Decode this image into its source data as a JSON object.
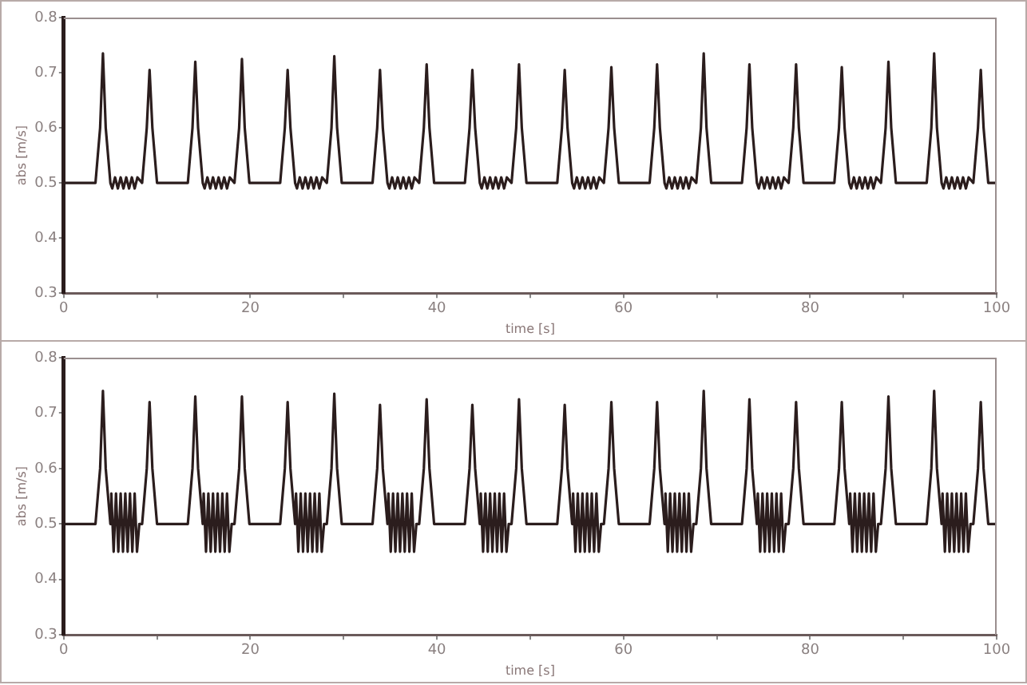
{
  "chart_data": [
    {
      "type": "line",
      "xlabel": "time [s]",
      "ylabel": "abs [m/s]",
      "color": "#2b1d1d",
      "grid": false,
      "xlim": [
        0,
        100
      ],
      "ylim": [
        0.3,
        0.8
      ],
      "xticks": [
        0,
        {
          "value": 10,
          "label": null
        },
        20,
        {
          "value": 30,
          "label": null
        },
        40,
        {
          "value": 50,
          "label": null
        },
        60,
        {
          "value": 70,
          "label": null
        },
        80,
        {
          "value": 90,
          "label": null
        },
        100
      ],
      "yticks": [
        0.3,
        0.4,
        0.5,
        0.6,
        0.7,
        0.8
      ],
      "x": [
        0,
        0,
        3.4,
        3.9,
        4.2,
        4.5,
        5.0,
        5.2,
        5.5,
        5.8,
        6.1,
        6.4,
        6.7,
        7.0,
        7.3,
        7.6,
        7.9,
        8.4,
        8.9,
        9.2,
        9.5,
        10.0,
        13.3,
        13.8,
        14.1,
        14.4,
        14.9,
        15.1,
        15.4,
        15.7,
        16.0,
        16.3,
        16.6,
        16.9,
        17.2,
        17.5,
        17.8,
        18.3,
        18.8,
        19.1,
        19.4,
        19.9,
        23.2,
        23.7,
        24.0,
        24.3,
        24.8,
        25.0,
        25.3,
        25.6,
        25.9,
        26.2,
        26.5,
        26.8,
        27.1,
        27.4,
        27.7,
        28.2,
        28.7,
        29.0,
        29.3,
        29.8,
        33.1,
        33.6,
        33.9,
        34.2,
        34.7,
        34.9,
        35.2,
        35.5,
        35.8,
        36.1,
        36.4,
        36.7,
        37.0,
        37.3,
        37.6,
        38.1,
        38.6,
        38.9,
        39.2,
        39.7,
        43.0,
        43.5,
        43.8,
        44.1,
        44.6,
        44.8,
        45.1,
        45.4,
        45.7,
        46.0,
        46.3,
        46.6,
        46.9,
        47.2,
        47.5,
        48.0,
        48.5,
        48.8,
        49.1,
        49.6,
        52.9,
        53.4,
        53.7,
        54.0,
        54.5,
        54.7,
        55.0,
        55.3,
        55.6,
        55.9,
        56.2,
        56.5,
        56.8,
        57.1,
        57.4,
        57.9,
        58.4,
        58.7,
        59.0,
        59.5,
        62.8,
        63.3,
        63.6,
        63.9,
        64.4,
        64.6,
        64.9,
        65.2,
        65.5,
        65.8,
        66.1,
        66.4,
        66.7,
        67.0,
        67.3,
        67.8,
        68.3,
        68.6,
        68.9,
        69.4,
        72.7,
        73.2,
        73.5,
        73.8,
        74.3,
        74.5,
        74.8,
        75.1,
        75.4,
        75.7,
        76.0,
        76.3,
        76.6,
        76.9,
        77.2,
        77.7,
        78.2,
        78.5,
        78.8,
        79.3,
        82.6,
        83.1,
        83.4,
        83.7,
        84.2,
        84.4,
        84.7,
        85.0,
        85.3,
        85.6,
        85.9,
        86.2,
        86.5,
        86.8,
        87.1,
        87.6,
        88.1,
        88.4,
        88.7,
        89.2,
        92.5,
        93.0,
        93.3,
        93.6,
        94.1,
        94.3,
        94.6,
        94.9,
        95.2,
        95.5,
        95.8,
        96.1,
        96.4,
        96.7,
        97.0,
        97.5,
        98.0,
        98.3,
        98.6,
        99.1,
        100
      ],
      "values": [
        0.3,
        0.5,
        0.5,
        0.6,
        0.735,
        0.6,
        0.5,
        0.49,
        0.51,
        0.49,
        0.51,
        0.49,
        0.51,
        0.49,
        0.51,
        0.49,
        0.51,
        0.5,
        0.6,
        0.705,
        0.6,
        0.5,
        0.5,
        0.6,
        0.72,
        0.6,
        0.5,
        0.49,
        0.51,
        0.49,
        0.51,
        0.49,
        0.51,
        0.49,
        0.51,
        0.49,
        0.51,
        0.5,
        0.6,
        0.725,
        0.6,
        0.5,
        0.5,
        0.6,
        0.705,
        0.6,
        0.5,
        0.49,
        0.51,
        0.49,
        0.51,
        0.49,
        0.51,
        0.49,
        0.51,
        0.49,
        0.51,
        0.5,
        0.6,
        0.73,
        0.6,
        0.5,
        0.5,
        0.6,
        0.705,
        0.6,
        0.5,
        0.49,
        0.51,
        0.49,
        0.51,
        0.49,
        0.51,
        0.49,
        0.51,
        0.49,
        0.51,
        0.5,
        0.6,
        0.715,
        0.6,
        0.5,
        0.5,
        0.6,
        0.705,
        0.6,
        0.5,
        0.49,
        0.51,
        0.49,
        0.51,
        0.49,
        0.51,
        0.49,
        0.51,
        0.49,
        0.51,
        0.5,
        0.6,
        0.715,
        0.6,
        0.5,
        0.5,
        0.6,
        0.705,
        0.6,
        0.5,
        0.49,
        0.51,
        0.49,
        0.51,
        0.49,
        0.51,
        0.49,
        0.51,
        0.49,
        0.51,
        0.5,
        0.6,
        0.71,
        0.6,
        0.5,
        0.5,
        0.6,
        0.715,
        0.6,
        0.5,
        0.49,
        0.51,
        0.49,
        0.51,
        0.49,
        0.51,
        0.49,
        0.51,
        0.49,
        0.51,
        0.5,
        0.6,
        0.735,
        0.6,
        0.5,
        0.5,
        0.6,
        0.715,
        0.6,
        0.5,
        0.49,
        0.51,
        0.49,
        0.51,
        0.49,
        0.51,
        0.49,
        0.51,
        0.49,
        0.51,
        0.5,
        0.6,
        0.715,
        0.6,
        0.5,
        0.5,
        0.6,
        0.71,
        0.6,
        0.5,
        0.49,
        0.51,
        0.49,
        0.51,
        0.49,
        0.51,
        0.49,
        0.51,
        0.49,
        0.51,
        0.5,
        0.6,
        0.72,
        0.6,
        0.5,
        0.5,
        0.6,
        0.735,
        0.6,
        0.5,
        0.49,
        0.51,
        0.49,
        0.51,
        0.49,
        0.51,
        0.49,
        0.51,
        0.49,
        0.51,
        0.5,
        0.6,
        0.705,
        0.6,
        0.5,
        0.5
      ]
    },
    {
      "type": "line",
      "xlabel": "time [s]",
      "ylabel": "abs [m/s]",
      "color": "#2b1d1d",
      "grid": false,
      "xlim": [
        0,
        100
      ],
      "ylim": [
        0.3,
        0.8
      ],
      "xticks": [
        0,
        {
          "value": 10,
          "label": null
        },
        20,
        {
          "value": 30,
          "label": null
        },
        40,
        {
          "value": 50,
          "label": null
        },
        60,
        {
          "value": 70,
          "label": null
        },
        80,
        {
          "value": 90,
          "label": null
        },
        100
      ],
      "yticks": [
        0.3,
        0.4,
        0.5,
        0.6,
        0.7,
        0.8
      ],
      "x": [
        0,
        0,
        3.4,
        3.9,
        4.2,
        4.5,
        5.0,
        5.1,
        5.35,
        5.6,
        5.85,
        6.1,
        6.35,
        6.6,
        6.85,
        7.1,
        7.35,
        7.6,
        7.85,
        8.1,
        8.4,
        8.9,
        9.2,
        9.5,
        10.0,
        13.3,
        13.8,
        14.1,
        14.4,
        14.9,
        15.0,
        15.25,
        15.5,
        15.75,
        16.0,
        16.25,
        16.5,
        16.75,
        17.0,
        17.25,
        17.5,
        17.75,
        18.0,
        18.3,
        18.8,
        19.1,
        19.4,
        19.9,
        23.2,
        23.7,
        24.0,
        24.3,
        24.8,
        24.9,
        25.15,
        25.4,
        25.65,
        25.9,
        26.15,
        26.4,
        26.65,
        26.9,
        27.15,
        27.4,
        27.65,
        27.9,
        28.2,
        28.7,
        29.0,
        29.3,
        29.8,
        33.1,
        33.6,
        33.9,
        34.2,
        34.7,
        34.8,
        35.05,
        35.3,
        35.55,
        35.8,
        36.05,
        36.3,
        36.55,
        36.8,
        37.05,
        37.3,
        37.55,
        37.8,
        38.1,
        38.6,
        38.9,
        39.2,
        39.7,
        43.0,
        43.5,
        43.8,
        44.1,
        44.6,
        44.7,
        44.95,
        45.2,
        45.45,
        45.7,
        45.95,
        46.2,
        46.45,
        46.7,
        46.95,
        47.2,
        47.45,
        47.7,
        48.0,
        48.5,
        48.8,
        49.1,
        49.6,
        52.9,
        53.4,
        53.7,
        54.0,
        54.5,
        54.6,
        54.85,
        55.1,
        55.35,
        55.6,
        55.85,
        56.1,
        56.35,
        56.6,
        56.85,
        57.1,
        57.35,
        57.6,
        57.9,
        58.4,
        58.7,
        59.0,
        59.5,
        62.8,
        63.3,
        63.6,
        63.9,
        64.4,
        64.5,
        64.75,
        65.0,
        65.25,
        65.5,
        65.75,
        66.0,
        66.25,
        66.5,
        66.75,
        67.0,
        67.25,
        67.5,
        67.8,
        68.3,
        68.6,
        68.9,
        69.4,
        72.7,
        73.2,
        73.5,
        73.8,
        74.3,
        74.4,
        74.65,
        74.9,
        75.15,
        75.4,
        75.65,
        75.9,
        76.15,
        76.4,
        76.65,
        76.9,
        77.15,
        77.4,
        77.7,
        78.2,
        78.5,
        78.8,
        79.3,
        82.6,
        83.1,
        83.4,
        83.7,
        84.2,
        84.3,
        84.55,
        84.8,
        85.05,
        85.3,
        85.55,
        85.8,
        86.05,
        86.3,
        86.55,
        86.8,
        87.05,
        87.3,
        87.6,
        88.1,
        88.4,
        88.7,
        89.2,
        92.5,
        93.0,
        93.3,
        93.6,
        94.1,
        94.2,
        94.45,
        94.7,
        94.95,
        95.2,
        95.45,
        95.7,
        95.95,
        96.2,
        96.45,
        96.7,
        96.95,
        97.2,
        97.5,
        98.0,
        98.3,
        98.6,
        99.1,
        100
      ],
      "values": [
        0.3,
        0.5,
        0.5,
        0.6,
        0.74,
        0.6,
        0.5,
        0.555,
        0.45,
        0.555,
        0.45,
        0.555,
        0.45,
        0.555,
        0.45,
        0.555,
        0.45,
        0.555,
        0.45,
        0.5,
        0.5,
        0.6,
        0.72,
        0.6,
        0.5,
        0.5,
        0.6,
        0.73,
        0.6,
        0.5,
        0.555,
        0.45,
        0.555,
        0.45,
        0.555,
        0.45,
        0.555,
        0.45,
        0.555,
        0.45,
        0.555,
        0.45,
        0.5,
        0.5,
        0.6,
        0.73,
        0.6,
        0.5,
        0.5,
        0.6,
        0.72,
        0.6,
        0.5,
        0.555,
        0.45,
        0.555,
        0.45,
        0.555,
        0.45,
        0.555,
        0.45,
        0.555,
        0.45,
        0.555,
        0.45,
        0.5,
        0.5,
        0.6,
        0.735,
        0.6,
        0.5,
        0.5,
        0.6,
        0.715,
        0.6,
        0.5,
        0.555,
        0.45,
        0.555,
        0.45,
        0.555,
        0.45,
        0.555,
        0.45,
        0.555,
        0.45,
        0.555,
        0.45,
        0.5,
        0.5,
        0.6,
        0.725,
        0.6,
        0.5,
        0.5,
        0.6,
        0.715,
        0.6,
        0.5,
        0.555,
        0.45,
        0.555,
        0.45,
        0.555,
        0.45,
        0.555,
        0.45,
        0.555,
        0.45,
        0.555,
        0.45,
        0.5,
        0.5,
        0.6,
        0.725,
        0.6,
        0.5,
        0.5,
        0.6,
        0.715,
        0.6,
        0.5,
        0.555,
        0.45,
        0.555,
        0.45,
        0.555,
        0.45,
        0.555,
        0.45,
        0.555,
        0.45,
        0.555,
        0.45,
        0.5,
        0.5,
        0.6,
        0.72,
        0.6,
        0.5,
        0.5,
        0.6,
        0.72,
        0.6,
        0.5,
        0.555,
        0.45,
        0.555,
        0.45,
        0.555,
        0.45,
        0.555,
        0.45,
        0.555,
        0.45,
        0.555,
        0.45,
        0.5,
        0.5,
        0.6,
        0.74,
        0.6,
        0.5,
        0.5,
        0.6,
        0.725,
        0.6,
        0.5,
        0.555,
        0.45,
        0.555,
        0.45,
        0.555,
        0.45,
        0.555,
        0.45,
        0.555,
        0.45,
        0.555,
        0.45,
        0.5,
        0.5,
        0.6,
        0.72,
        0.6,
        0.5,
        0.5,
        0.6,
        0.72,
        0.6,
        0.5,
        0.555,
        0.45,
        0.555,
        0.45,
        0.555,
        0.45,
        0.555,
        0.45,
        0.555,
        0.45,
        0.555,
        0.45,
        0.5,
        0.5,
        0.6,
        0.73,
        0.6,
        0.5,
        0.5,
        0.6,
        0.74,
        0.6,
        0.5,
        0.555,
        0.45,
        0.555,
        0.45,
        0.555,
        0.45,
        0.555,
        0.45,
        0.555,
        0.45,
        0.555,
        0.45,
        0.5,
        0.5,
        0.6,
        0.72,
        0.6,
        0.5,
        0.5
      ]
    }
  ]
}
